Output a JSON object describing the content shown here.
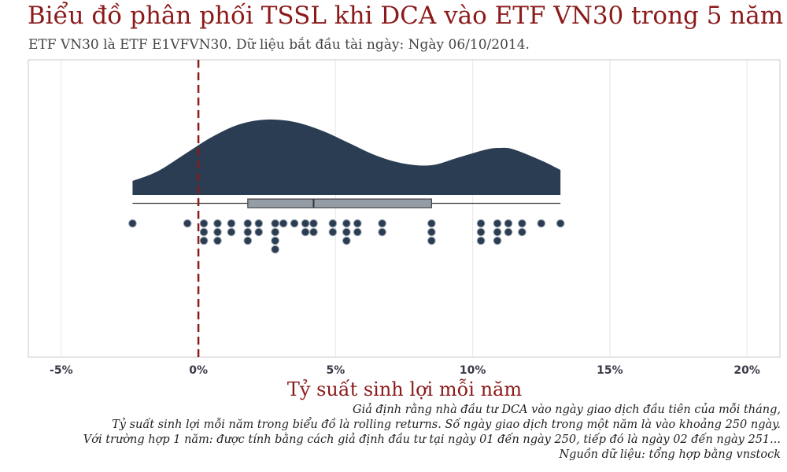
{
  "title": "Biểu đồ phân phối TSSL khi DCA vào ETF VN30 trong 5 năm",
  "subtitle": "ETF VN30 là ETF E1VFVN30.  Dữ liệu bắt đầu tài ngày: Ngày 06/10/2014.",
  "notes": [
    "Giả định rằng nhà đầu tư DCA vào ngày giao dịch đầu tiên của mỗi tháng,",
    "Tỷ suất sinh lợi mỗi năm trong biểu đồ là rolling returns. Số ngày giao dịch trong một năm là vào khoảng 250 ngày.",
    "Với trường hợp 1 năm: được tính bằng cách giả định đầu tư tại ngày 01 đến ngày 250, tiếp đó là ngày 02 đến ngày 251...",
    "Nguồn dữ liệu: tổng hợp bằng vnstock"
  ],
  "colors": {
    "title": "#8b1a1a",
    "density": "#2b3d52",
    "box_fill": "#949ca6",
    "points": "#2b3d52",
    "ref_line": "#8b1a1a",
    "grid": "#e6e6e6"
  },
  "chart_data": {
    "type": "raincloud",
    "orientation": "horizontal",
    "xlabel": "Tỷ suất sinh lợi mỗi năm",
    "xlim": [
      -6.2,
      21.2
    ],
    "xticks": [
      -5,
      0,
      5,
      10,
      15,
      20
    ],
    "xtick_labels": [
      "-5%",
      "0%",
      "5%",
      "10%",
      "15%",
      "20%"
    ],
    "grid": "vertical",
    "reference_line": {
      "x": 0,
      "style": "dashed"
    },
    "box": {
      "min": -2.4,
      "q1": 1.8,
      "median": 4.2,
      "q3": 8.5,
      "max": 13.2
    },
    "density": {
      "x": [
        -2.4,
        -1.5,
        -0.5,
        0.5,
        1.5,
        2.5,
        3.5,
        4.5,
        5.5,
        6.5,
        7.5,
        8.5,
        9.5,
        10.5,
        11.0,
        11.5,
        12.5,
        13.2
      ],
      "y": [
        0.18,
        0.3,
        0.52,
        0.74,
        0.9,
        0.96,
        0.93,
        0.82,
        0.66,
        0.5,
        0.4,
        0.38,
        0.48,
        0.58,
        0.6,
        0.58,
        0.44,
        0.32
      ]
    },
    "values": [
      -2.4,
      -0.4,
      0.2,
      0.2,
      0.2,
      0.7,
      0.7,
      0.7,
      1.2,
      1.2,
      1.8,
      1.8,
      1.8,
      2.2,
      2.2,
      2.8,
      2.8,
      2.8,
      2.8,
      3.1,
      3.5,
      3.9,
      3.9,
      4.2,
      4.2,
      4.9,
      4.9,
      5.4,
      5.4,
      5.4,
      5.8,
      5.8,
      6.7,
      6.7,
      8.5,
      8.5,
      8.5,
      10.3,
      10.3,
      10.3,
      10.9,
      10.9,
      10.9,
      11.3,
      11.3,
      11.8,
      11.8,
      12.5,
      13.2
    ]
  }
}
